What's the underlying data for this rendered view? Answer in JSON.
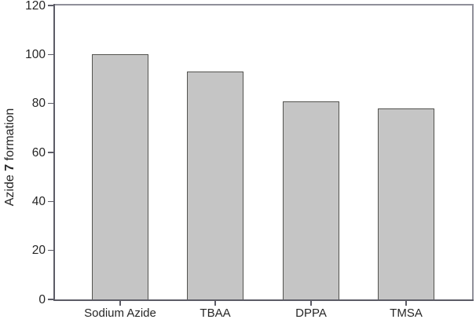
{
  "chart_data": {
    "type": "bar",
    "categories": [
      "Sodium Azide",
      "TBAA",
      "DPPA",
      "TMSA"
    ],
    "values": [
      100,
      93,
      81,
      78
    ],
    "title": "",
    "xlabel": "",
    "ylabel": "Azide 7 formation",
    "ylabel_rich": {
      "prefix": "Azide ",
      "bold": "7",
      "suffix": " formation"
    },
    "ylim": [
      0,
      120
    ],
    "yticks": [
      0,
      20,
      40,
      60,
      80,
      100,
      120
    ],
    "ytick_step": 20,
    "grid": false,
    "legend": false,
    "bar_fill_color": "#c5c5c5",
    "bar_border_color": "#53534f",
    "axis_color": "#5c5c66",
    "frame_color": "#90909a",
    "text_color": "#262626",
    "background_color": "#ffffff"
  }
}
